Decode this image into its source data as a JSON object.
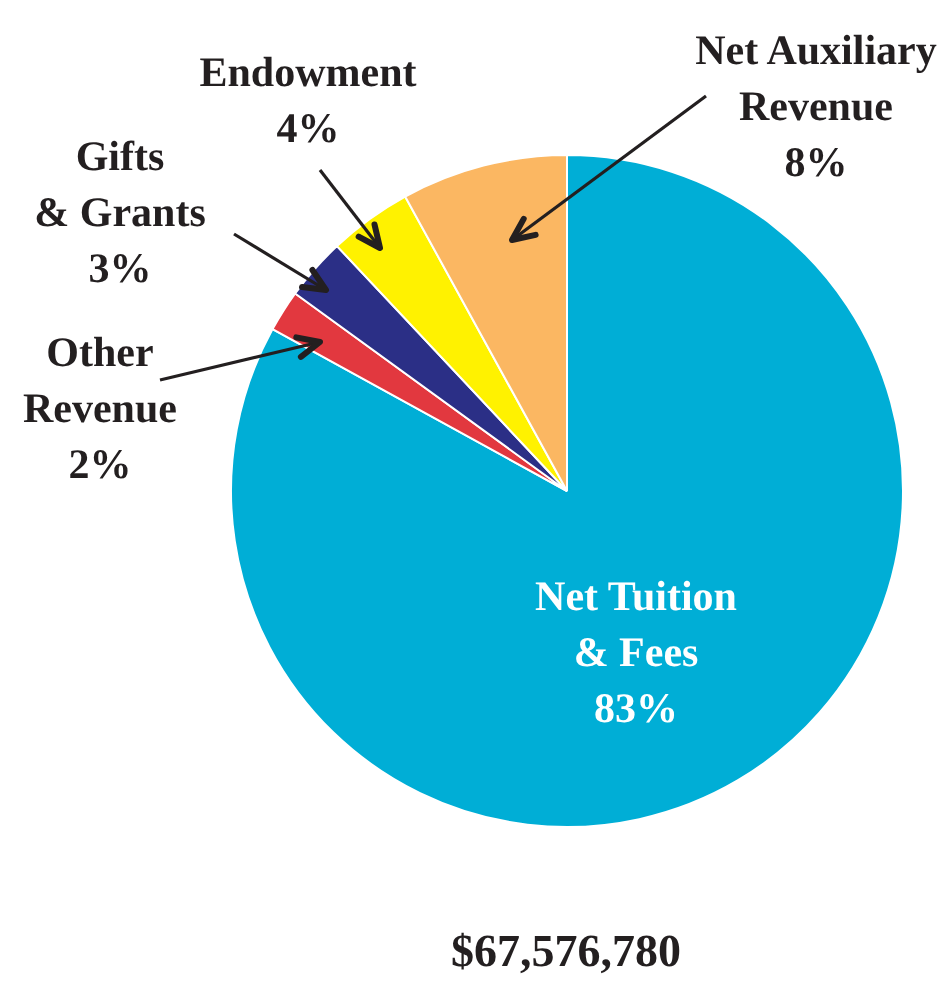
{
  "chart_data": {
    "type": "pie",
    "categories": [
      "Net Tuition & Fees",
      "Other Revenue",
      "Gifts & Grants",
      "Endowment",
      "Net Auxiliary Revenue"
    ],
    "values": [
      83,
      2,
      3,
      4,
      8
    ],
    "value_labels": [
      "83%",
      "2%",
      "3%",
      "4%",
      "8%"
    ],
    "colors": [
      "#00aed6",
      "#e2383f",
      "#2b2f86",
      "#fff200",
      "#fbb762"
    ],
    "legend": false,
    "annotations": [
      "$67,576,780"
    ]
  }
}
